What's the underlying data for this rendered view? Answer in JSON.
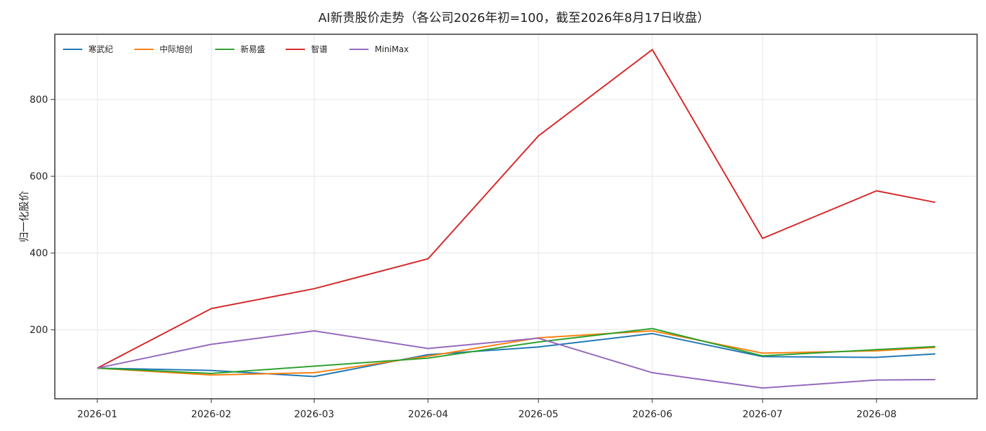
{
  "chart_data": {
    "type": "line",
    "title": "AI新贵股价走势（各公司2026年初=100，截至2026年8月17日收盘）",
    "xlabel": "",
    "ylabel": "归一化股价",
    "x": [
      "2026-01-01",
      "2026-02-01",
      "2026-03-01",
      "2026-04-01",
      "2026-05-01",
      "2026-06-01",
      "2026-07-01",
      "2026-08-01",
      "2026-08-17"
    ],
    "x_ticks": [
      "2026-01",
      "2026-02",
      "2026-03",
      "2026-04",
      "2026-05",
      "2026-06",
      "2026-07",
      "2026-08"
    ],
    "ylim": [
      20,
      970
    ],
    "y_ticks": [
      200,
      400,
      600,
      800
    ],
    "grid": true,
    "legend_position": "top-left",
    "series": [
      {
        "name": "寒武纪",
        "color": "#1f77b4",
        "values": [
          100,
          94,
          78,
          135,
          155,
          190,
          130,
          128,
          137
        ]
      },
      {
        "name": "中际旭创",
        "color": "#ff7f0e",
        "values": [
          100,
          82,
          88,
          131,
          179,
          197,
          139,
          145,
          154
        ]
      },
      {
        "name": "新易盛",
        "color": "#2ca02c",
        "values": [
          100,
          86,
          105,
          126,
          168,
          203,
          132,
          148,
          156
        ]
      },
      {
        "name": "智谱",
        "color": "#d62728",
        "values": [
          100,
          255,
          307,
          385,
          705,
          930,
          438,
          562,
          532
        ]
      },
      {
        "name": "MiniMax",
        "color": "#9467bd",
        "values": [
          100,
          162,
          197,
          151,
          178,
          88,
          48,
          69,
          70
        ]
      }
    ]
  }
}
